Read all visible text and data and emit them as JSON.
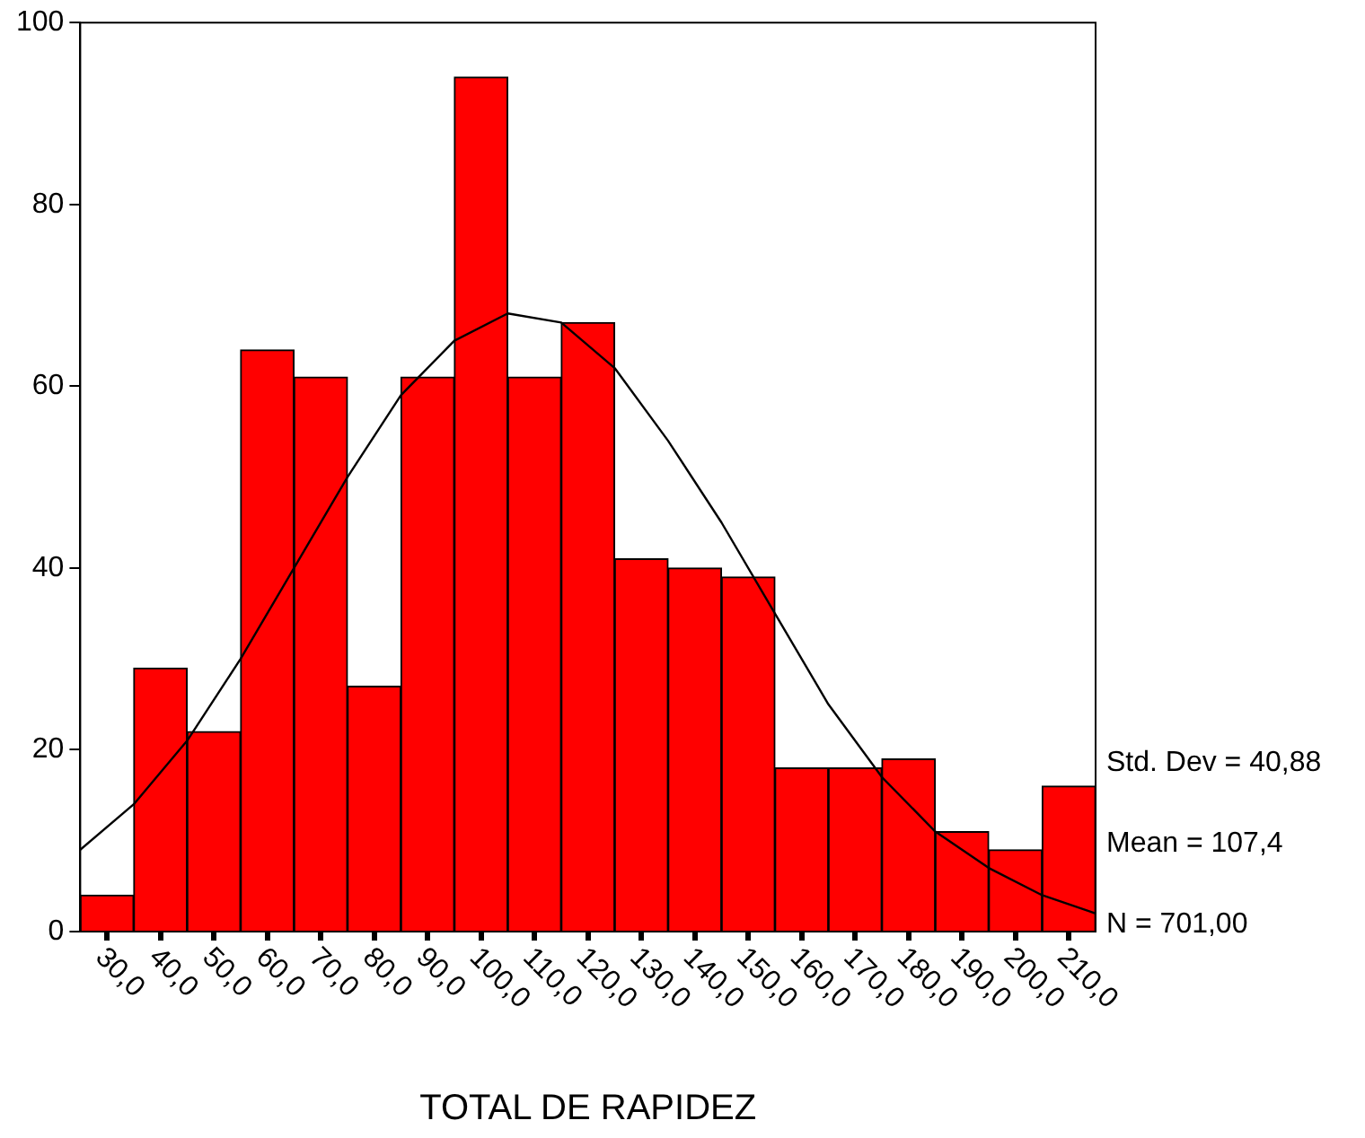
{
  "chart_data": {
    "type": "histogram",
    "xlabel": "TOTAL DE RAPIDEZ",
    "bins": [
      25,
      35,
      45,
      55,
      65,
      75,
      85,
      95,
      105,
      115,
      125,
      135,
      145,
      155,
      165,
      175,
      185,
      195,
      205,
      215
    ],
    "values": [
      4,
      29,
      22,
      64,
      61,
      27,
      61,
      94,
      61,
      67,
      41,
      40,
      39,
      18,
      18,
      19,
      11,
      9,
      16
    ],
    "color": "#ff0000",
    "series": [
      {
        "type": "line",
        "color": "#000000",
        "x": [
          25,
          35,
          45,
          55,
          65,
          75,
          85,
          95,
          105,
          115,
          125,
          135,
          145,
          155,
          165,
          175,
          185,
          195,
          205,
          215
        ],
        "values": [
          9,
          14,
          21,
          30,
          40,
          50,
          59,
          65,
          68,
          67,
          62,
          54,
          45,
          35,
          25,
          17,
          11,
          7,
          4,
          2
        ]
      }
    ],
    "xlim": [
      25,
      215
    ],
    "xticks": [
      {
        "value": 30,
        "label": "30,0"
      },
      {
        "value": 40,
        "label": "40,0"
      },
      {
        "value": 50,
        "label": "50,0"
      },
      {
        "value": 60,
        "label": "60,0"
      },
      {
        "value": 70,
        "label": "70,0"
      },
      {
        "value": 80,
        "label": "80,0"
      },
      {
        "value": 90,
        "label": "90,0"
      },
      {
        "value": 100,
        "label": "100,0"
      },
      {
        "value": 110,
        "label": "110,0"
      },
      {
        "value": 120,
        "label": "120,0"
      },
      {
        "value": 130,
        "label": "130,0"
      },
      {
        "value": 140,
        "label": "140,0"
      },
      {
        "value": 150,
        "label": "150,0"
      },
      {
        "value": 160,
        "label": "160,0"
      },
      {
        "value": 170,
        "label": "170,0"
      },
      {
        "value": 180,
        "label": "180,0"
      },
      {
        "value": 190,
        "label": "190,0"
      },
      {
        "value": 200,
        "label": "200,0"
      },
      {
        "value": 210,
        "label": "210,0"
      }
    ],
    "ylim": [
      0,
      100
    ],
    "yticks": [
      0,
      20,
      40,
      60,
      80,
      100
    ],
    "annotations": [
      "Std. Dev = 40,88",
      "Mean = 107,4",
      "N = 701,00"
    ],
    "grid": false,
    "legend": false
  }
}
